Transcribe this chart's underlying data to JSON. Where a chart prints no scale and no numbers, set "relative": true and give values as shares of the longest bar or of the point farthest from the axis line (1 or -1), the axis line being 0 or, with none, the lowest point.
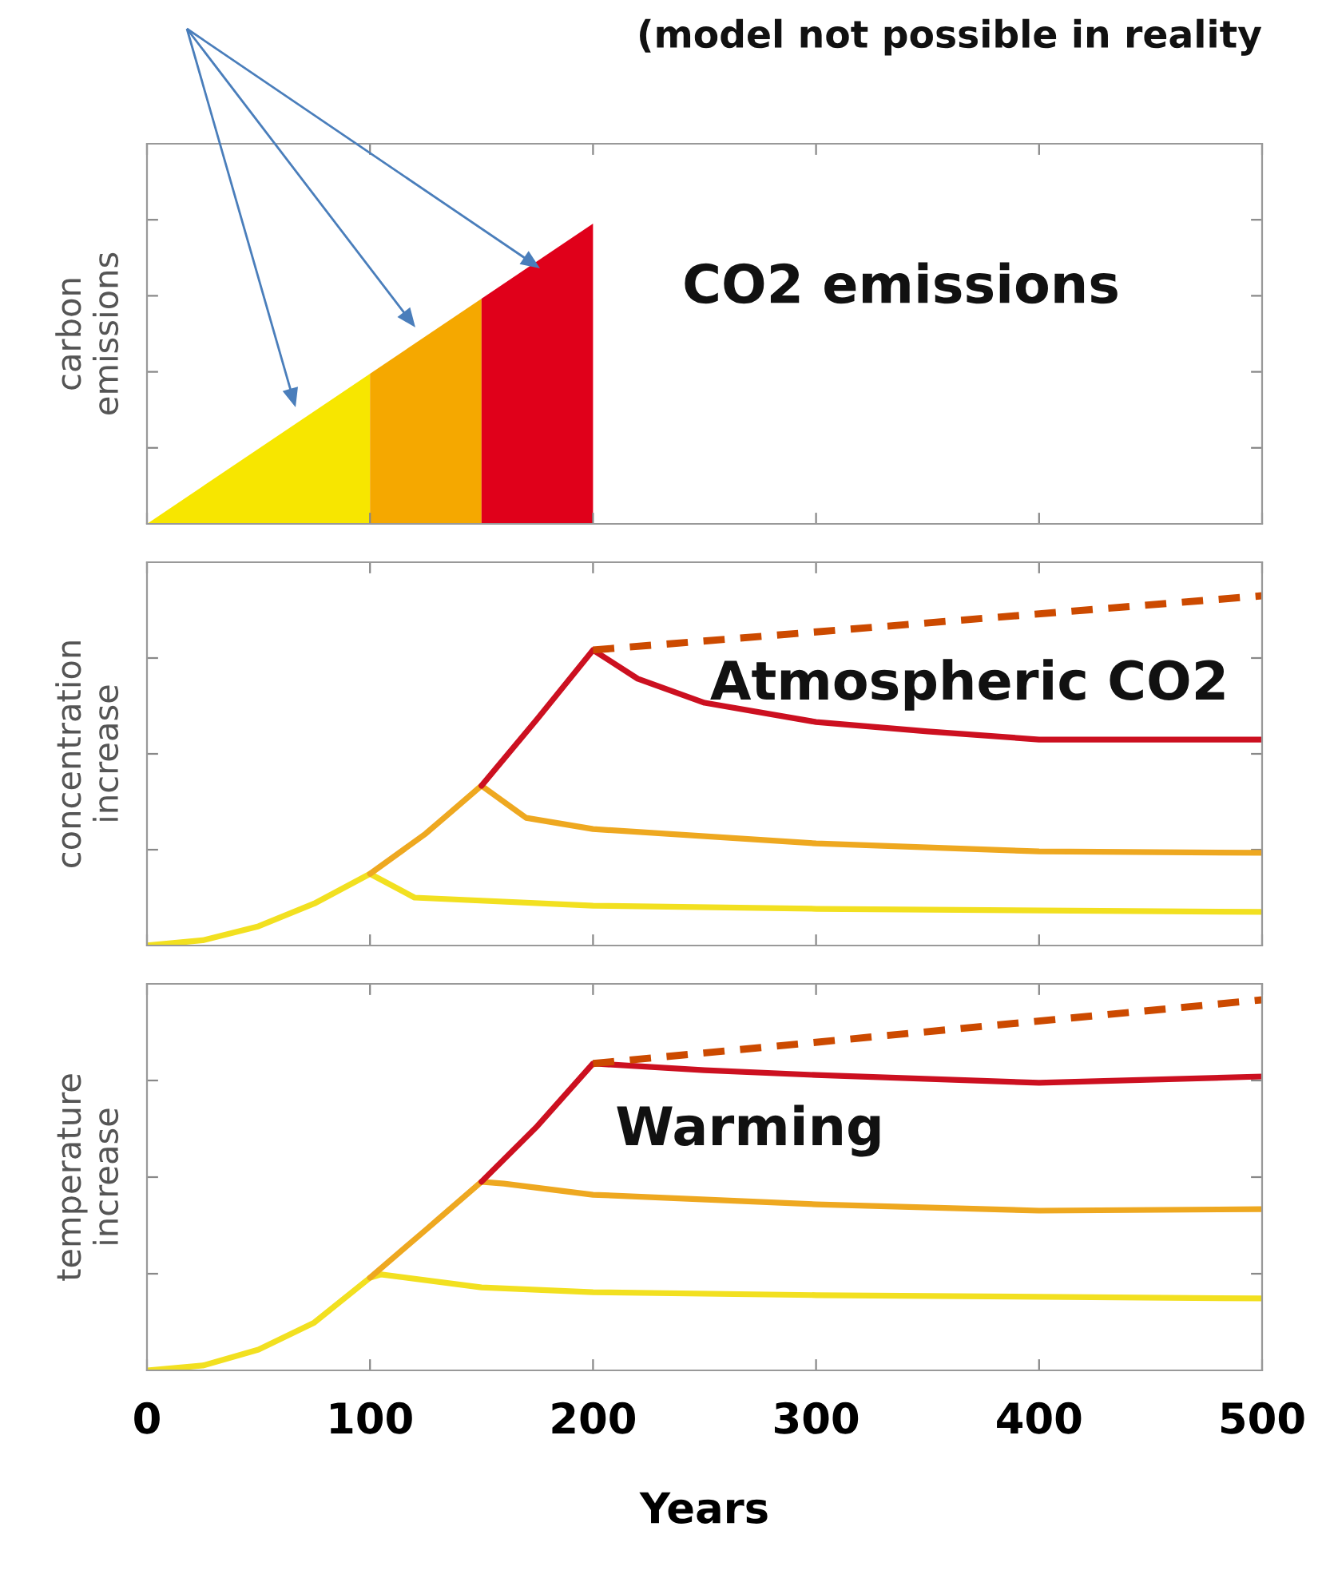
{
  "chart_data": [
    {
      "type": "area",
      "ylabel": "carbon\nemissions",
      "relative": true,
      "xlim": [
        0,
        500
      ],
      "xticks": [
        0,
        100,
        200,
        300,
        400,
        500
      ],
      "tick_labels": false,
      "annotations": [
        "(model not possible in reality",
        "CO2 emissions"
      ],
      "series": [
        {
          "color": "#f7e600",
          "x": [
            0,
            100
          ],
          "values": [
            0,
            0.5
          ]
        },
        {
          "color": "#f5a800",
          "x": [
            100,
            150
          ],
          "values": [
            0.5,
            0.75
          ]
        },
        {
          "color": "#e0001a",
          "x": [
            150,
            200
          ],
          "values": [
            0.75,
            1.0
          ]
        }
      ]
    },
    {
      "type": "line",
      "ylabel": "concentration\nincrease",
      "relative": true,
      "xlim": [
        0,
        500
      ],
      "xticks": [
        0,
        100,
        200,
        300,
        400,
        500
      ],
      "tick_labels": false,
      "annotations": [
        "Atmospheric CO2"
      ],
      "series": [
        {
          "color": "#f2e020",
          "x": [
            0,
            25,
            50,
            75,
            100,
            120,
            200,
            300,
            500
          ],
          "values": [
            0,
            0.015,
            0.055,
            0.12,
            0.205,
            0.137,
            0.114,
            0.105,
            0.096
          ]
        },
        {
          "color": "#eea820",
          "x": [
            100,
            125,
            150,
            170,
            200,
            300,
            400,
            500
          ],
          "values": [
            0.205,
            0.32,
            0.457,
            0.365,
            0.333,
            0.292,
            0.269,
            0.265
          ]
        },
        {
          "color": "#cc1020",
          "x": [
            150,
            175,
            200,
            220,
            250,
            300,
            350,
            400,
            500
          ],
          "values": [
            0.457,
            0.648,
            0.845,
            0.763,
            0.694,
            0.639,
            0.612,
            0.589,
            0.589
          ]
        },
        {
          "color": "#cc4a00",
          "line_style": "dashed",
          "x": [
            200,
            500
          ],
          "values": [
            0.845,
            1.0
          ]
        }
      ]
    },
    {
      "type": "line",
      "ylabel": "temperature\nincrease",
      "xlabel": "Years",
      "relative": true,
      "xlim": [
        0,
        500
      ],
      "xticks": [
        0,
        100,
        200,
        300,
        400,
        500
      ],
      "tick_labels": "x",
      "annotations": [
        "Warming"
      ],
      "series": [
        {
          "color": "#f2e020",
          "x": [
            0,
            25,
            50,
            75,
            100,
            105,
            150,
            200,
            300,
            500
          ],
          "values": [
            0,
            0.013,
            0.056,
            0.129,
            0.25,
            0.259,
            0.224,
            0.211,
            0.203,
            0.194
          ]
        },
        {
          "color": "#eea820",
          "x": [
            100,
            125,
            150,
            160,
            200,
            300,
            400,
            500
          ],
          "values": [
            0.25,
            0.379,
            0.509,
            0.504,
            0.474,
            0.448,
            0.431,
            0.435
          ]
        },
        {
          "color": "#cc1020",
          "x": [
            150,
            175,
            200,
            250,
            300,
            400,
            500
          ],
          "values": [
            0.509,
            0.659,
            0.828,
            0.81,
            0.797,
            0.776,
            0.793
          ]
        },
        {
          "color": "#cc4a00",
          "line_style": "dashed",
          "x": [
            200,
            500
          ],
          "values": [
            0.828,
            1.0
          ]
        }
      ]
    }
  ]
}
